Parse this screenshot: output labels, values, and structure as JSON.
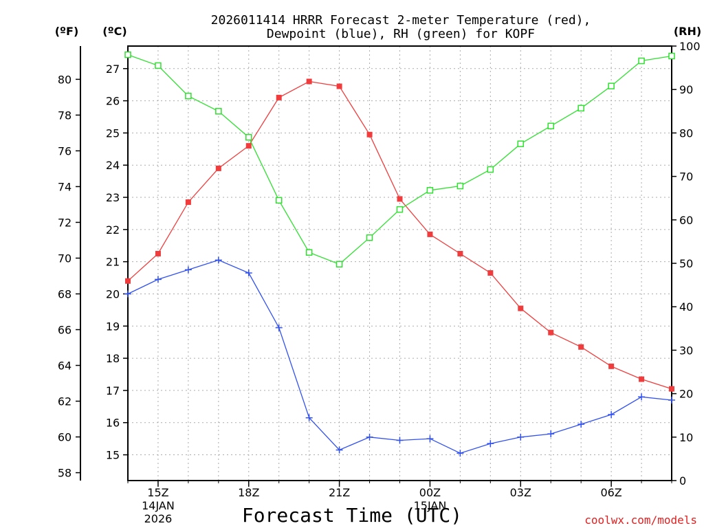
{
  "chart_data": {
    "type": "line",
    "title_line1": "2026011414 HRRR Forecast 2-meter Temperature (red),",
    "title_line2": "Dewpoint (blue), RH (green) for KOPF",
    "xlabel": "Forecast Time (UTC)",
    "credit": "coolwx.com/models",
    "y_left_f_label": "(ºF)",
    "y_left_c_label": "(ºC)",
    "y_right_label": "(RH)",
    "ylim_c": [
      14.2,
      27.7
    ],
    "ylim_rh": [
      0,
      100
    ],
    "yticks_c": [
      "15",
      "16",
      "17",
      "18",
      "19",
      "20",
      "21",
      "22",
      "23",
      "24",
      "25",
      "26",
      "27"
    ],
    "yticks_f": [
      "58",
      "60",
      "62",
      "64",
      "66",
      "68",
      "70",
      "72",
      "74",
      "76",
      "78",
      "80"
    ],
    "yticks_rh": [
      "0",
      "10",
      "20",
      "30",
      "40",
      "50",
      "60",
      "70",
      "80",
      "90",
      "100"
    ],
    "x_hours": [
      14,
      15,
      16,
      17,
      18,
      19,
      20,
      21,
      22,
      23,
      24,
      25,
      26,
      27,
      28,
      29,
      30,
      31,
      32
    ],
    "x_ticks": [
      {
        "h": 15,
        "label": "15Z",
        "sub1": "14JAN",
        "sub2": "2026"
      },
      {
        "h": 18,
        "label": "18Z",
        "sub1": "",
        "sub2": ""
      },
      {
        "h": 21,
        "label": "21Z",
        "sub1": "",
        "sub2": ""
      },
      {
        "h": 24,
        "label": "00Z",
        "sub1": "15JAN",
        "sub2": ""
      },
      {
        "h": 27,
        "label": "03Z",
        "sub1": "",
        "sub2": ""
      },
      {
        "h": 30,
        "label": "06Z",
        "sub1": "",
        "sub2": ""
      }
    ],
    "series": [
      {
        "name": "Temperature",
        "unit": "C",
        "color": "#f03c3c",
        "marker": "filled-square",
        "values": [
          20.4,
          21.25,
          22.85,
          23.9,
          24.6,
          26.1,
          26.6,
          26.45,
          24.95,
          22.95,
          21.85,
          21.25,
          20.65,
          19.55,
          18.8,
          18.35,
          17.75,
          17.35,
          17.05
        ]
      },
      {
        "name": "Dewpoint",
        "unit": "C",
        "color": "#3050f0",
        "marker": "plus",
        "values": [
          20.0,
          20.45,
          20.75,
          21.05,
          20.65,
          18.95,
          16.15,
          15.15,
          15.55,
          15.45,
          15.5,
          15.05,
          15.35,
          15.55,
          15.65,
          15.95,
          16.25,
          16.8,
          16.7
        ]
      },
      {
        "name": "RH",
        "unit": "%",
        "color": "#30e030",
        "marker": "open-square",
        "values": [
          98,
          95.5,
          88.5,
          85,
          79,
          64.5,
          52.5,
          49.8,
          55.9,
          62.4,
          66.8,
          67.8,
          71.6,
          77.5,
          81.6,
          85.7,
          90.8,
          96.6,
          97.7
        ]
      }
    ]
  }
}
